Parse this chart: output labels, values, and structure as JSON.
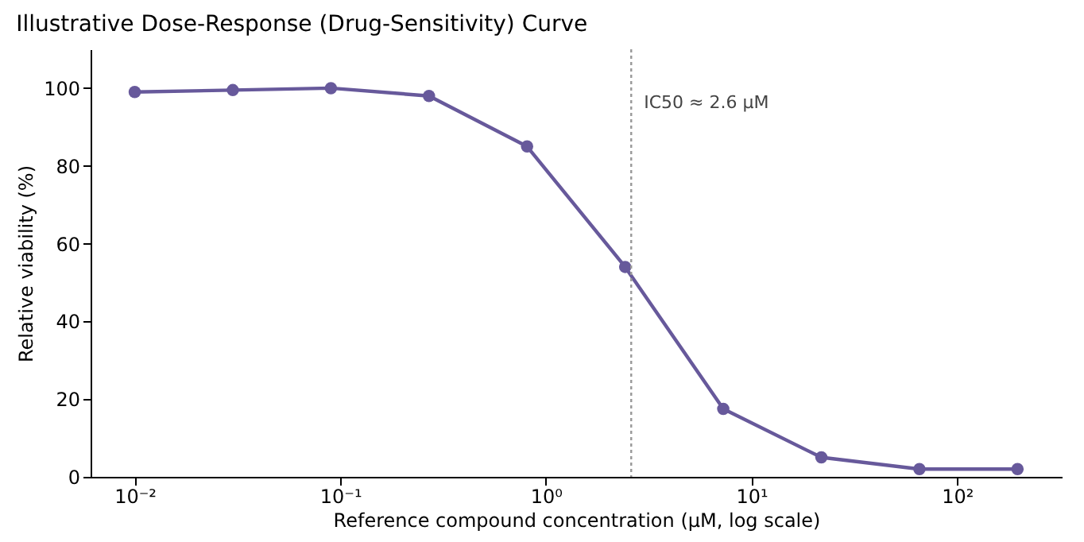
{
  "chart_data": {
    "type": "line",
    "title": "Illustrative Dose-Response (Drug-Sensitivity) Curve",
    "xlabel": "Reference compound concentration (µM, log scale)",
    "ylabel": "Relative viability (%)",
    "x": [
      0.01,
      0.03,
      0.09,
      0.27,
      0.81,
      2.43,
      7.29,
      21.87,
      65.61,
      196.83
    ],
    "series": [
      {
        "color": "#67599b",
        "values": [
          99,
          99.5,
          100,
          98,
          85,
          54,
          17.5,
          5,
          2,
          2
        ]
      }
    ],
    "log": "x",
    "xlim": [
      0.0061,
      323
    ],
    "ylim": [
      0,
      110
    ],
    "xticks": [
      {
        "value": 0.01,
        "label": "10⁻²"
      },
      {
        "value": 0.1,
        "label": "10⁻¹"
      },
      {
        "value": 1,
        "label": "10⁰"
      },
      {
        "value": 10,
        "label": "10¹"
      },
      {
        "value": 100,
        "label": "10²"
      }
    ],
    "yticks": [
      0,
      20,
      40,
      60,
      80,
      100
    ],
    "ref_lines": [
      {
        "axis": "x",
        "value": 2.6,
        "label": "IC50 ≈ 2.6 μM",
        "color": "#999999",
        "line_style": "dotted"
      }
    ],
    "grid": false,
    "marker": "circle",
    "line_style": "solid"
  }
}
